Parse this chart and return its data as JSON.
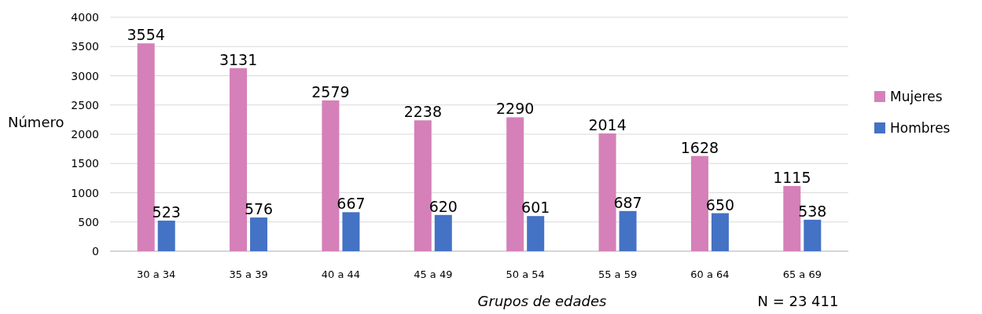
{
  "chart_data": {
    "type": "bar",
    "xlabel": "Grupos de edades",
    "ylabel": "Número",
    "annotations": [
      "N = 23 411"
    ],
    "categories": [
      "30 a 34",
      "35 a 39",
      "40 a 44",
      "45 a 49",
      "50 a 54",
      "55 a 59",
      "60 a 64",
      "65 a 69"
    ],
    "series": [
      {
        "name": "Mujeres",
        "color": "#d580b8",
        "values": [
          3554,
          3131,
          2579,
          2238,
          2290,
          2014,
          1628,
          1115
        ]
      },
      {
        "name": "Hombres",
        "color": "#4472c4",
        "values": [
          523,
          576,
          667,
          620,
          601,
          687,
          650,
          538
        ]
      }
    ],
    "ylim": [
      0,
      4000
    ],
    "yticks": [
      0,
      500,
      1000,
      1500,
      2000,
      2500,
      3000,
      3500,
      4000
    ],
    "grid": "y",
    "legend": "right",
    "data_labels": true
  }
}
